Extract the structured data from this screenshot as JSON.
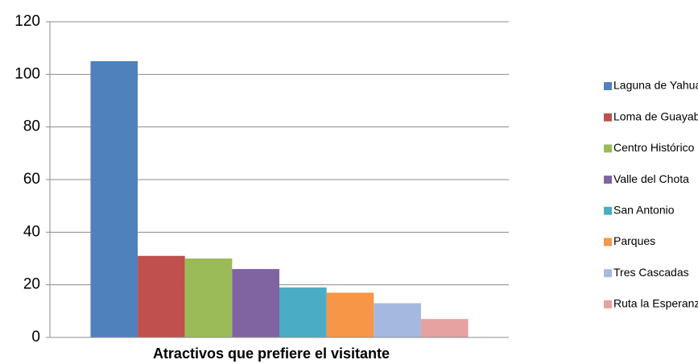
{
  "chart_data": {
    "type": "bar",
    "categories": [
      "Atractivos que prefiere el visitante"
    ],
    "series": [
      {
        "name": "Laguna de Yahuarcocha",
        "color": "#4f81bd",
        "values": [
          105
        ]
      },
      {
        "name": "Loma de Guayabillas",
        "color": "#c0504d",
        "values": [
          31
        ]
      },
      {
        "name": "Centro Histórico",
        "color": "#9bbb59",
        "values": [
          30
        ]
      },
      {
        "name": "Valle del Chota",
        "color": "#8064a2",
        "values": [
          26
        ]
      },
      {
        "name": "San Antonio",
        "color": "#4bacc6",
        "values": [
          19
        ]
      },
      {
        "name": "Parques",
        "color": "#f79646",
        "values": [
          17
        ]
      },
      {
        "name": "Tres Cascadas",
        "color": "#a5b9e0",
        "values": [
          13
        ]
      },
      {
        "name": "Ruta la Esperanza",
        "color": "#e6a1a1",
        "values": [
          7
        ]
      }
    ],
    "ylim": [
      0,
      120
    ],
    "yticks": [
      0,
      20,
      40,
      60,
      80,
      100,
      120
    ],
    "grid": true,
    "legend": "right"
  }
}
